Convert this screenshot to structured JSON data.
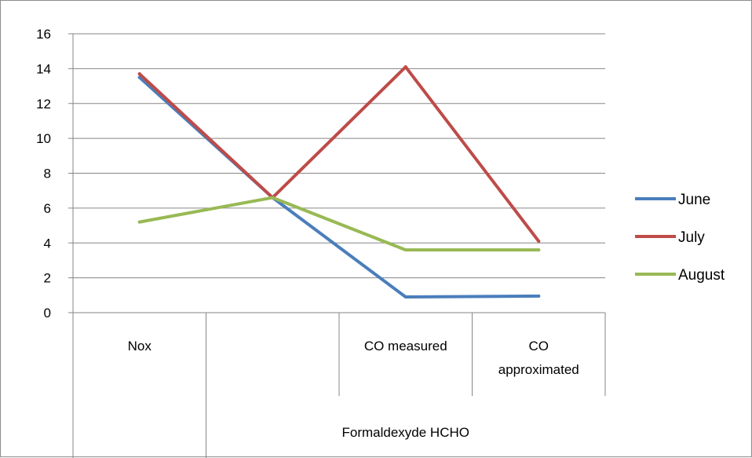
{
  "chart_data": {
    "type": "line",
    "title": "",
    "xlabel": "",
    "ylabel": "",
    "ylim": [
      0,
      16
    ],
    "yticks": [
      0,
      2,
      4,
      6,
      8,
      10,
      12,
      14,
      16
    ],
    "categories": [
      {
        "label": "Nox",
        "lines": [
          "Nox"
        ]
      },
      {
        "label": "",
        "lines": []
      },
      {
        "label": "CO measured",
        "lines": [
          "CO measured"
        ]
      },
      {
        "label": "CO approximated",
        "lines": [
          "CO",
          "approximated"
        ]
      }
    ],
    "category_groups": [
      {
        "label": "Formaldexyde HCHO",
        "from": 1,
        "to": 3
      }
    ],
    "series": [
      {
        "name": "June",
        "color": "#4a7ebb",
        "values": [
          13.5,
          6.6,
          0.9,
          0.95
        ]
      },
      {
        "name": "July",
        "color": "#be4b48",
        "values": [
          13.7,
          6.6,
          14.1,
          4.1
        ]
      },
      {
        "name": "August",
        "color": "#98b954",
        "values": [
          5.2,
          6.6,
          3.6,
          3.6
        ]
      }
    ],
    "grid": true,
    "legend_position": "right"
  }
}
